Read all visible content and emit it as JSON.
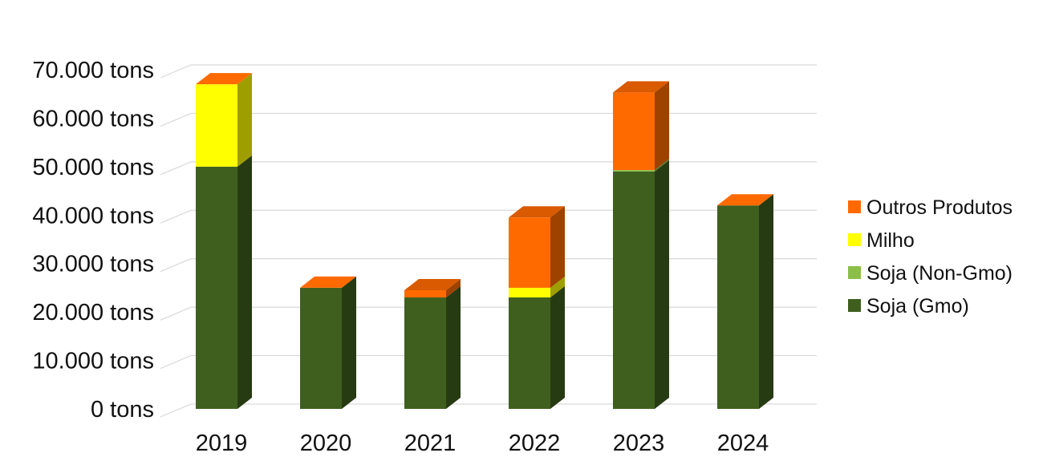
{
  "chart_data": {
    "type": "bar",
    "stacked": true,
    "three_d": true,
    "title": "",
    "xlabel": "",
    "ylabel": "",
    "categories": [
      "2019",
      "2020",
      "2021",
      "2022",
      "2023",
      "2024"
    ],
    "ylim": [
      0,
      70000
    ],
    "y_ticks": [
      0,
      10000,
      20000,
      30000,
      40000,
      50000,
      60000,
      70000
    ],
    "y_tick_labels": [
      "0 tons",
      "10.000 tons",
      "20.000 tons",
      "30.000 tons",
      "40.000 tons",
      "50.000 tons",
      "60.000 tons",
      "70.000 tons"
    ],
    "grid": true,
    "legend_position": "right",
    "series": [
      {
        "name": "Soja (Gmo)",
        "color": "#3f5f1f",
        "values": [
          50000,
          25000,
          23000,
          23000,
          49000,
          42000
        ]
      },
      {
        "name": "Soja (Non-Gmo)",
        "color": "#8cbf4a",
        "values": [
          0,
          0,
          0,
          0,
          300,
          0
        ]
      },
      {
        "name": "Milho",
        "color": "#ffff00",
        "values": [
          17000,
          0,
          0,
          2000,
          0,
          0
        ]
      },
      {
        "name": "Outros Produtos",
        "color": "#ff6a00",
        "values": [
          0,
          0,
          1500,
          14500,
          16000,
          0
        ]
      }
    ],
    "legend_order": [
      "Outros Produtos",
      "Milho",
      "Soja (Non-Gmo)",
      "Soja (Gmo)"
    ]
  }
}
